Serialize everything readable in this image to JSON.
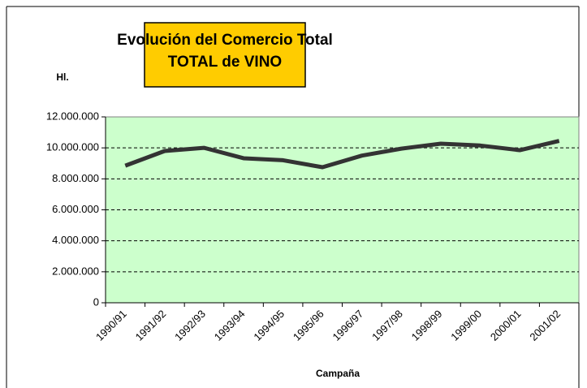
{
  "chart_data": {
    "type": "line",
    "title": "Evolución del Comercio Total",
    "subtitle": "TOTAL de VINO",
    "y_axis_label": "Hl.",
    "x_axis_label": "Campaña",
    "categories": [
      "1990/91",
      "1991/92",
      "1992/93",
      "1993/94",
      "1994/95",
      "1995/96",
      "1996/97",
      "1997/98",
      "1998/99",
      "1999/00",
      "2000/01",
      "2001/02"
    ],
    "series": [
      {
        "color": "#333333",
        "values": [
          8850000,
          9800000,
          10000000,
          9330000,
          9200000,
          8750000,
          9500000,
          9950000,
          10270000,
          10150000,
          9850000,
          10450000
        ]
      }
    ],
    "ylim": [
      0,
      12000000
    ],
    "yticks": [
      0,
      {
        "value": 2000000,
        "label": "2.000.000"
      },
      {
        "value": 4000000,
        "label": "4.000.000"
      },
      {
        "value": 6000000,
        "label": "6.000.000"
      },
      {
        "value": 8000000,
        "label": "8.000.000"
      },
      {
        "value": 10000000,
        "label": "10.000.000"
      },
      {
        "value": 12000000,
        "label": "12.000.000"
      }
    ],
    "grid": true,
    "plot_background": "#ccffcc",
    "title_background": "#ffcc00"
  }
}
